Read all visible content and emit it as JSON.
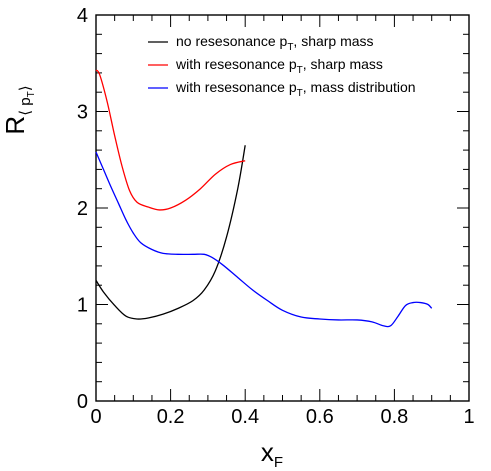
{
  "chart_data": {
    "type": "line",
    "xlabel": "x",
    "xlabel_sub": "F",
    "ylabel": "R",
    "ylabel_sub": "⟨ p",
    "ylabel_sub_sub": "T",
    "ylabel_sub_close": "⟩",
    "xlim": [
      0,
      1
    ],
    "ylim": [
      0,
      4
    ],
    "xticks": [
      "0",
      "0.2",
      "0.4",
      "0.6",
      "0.8",
      "1"
    ],
    "yticks": [
      "0",
      "1",
      "2",
      "3",
      "4"
    ],
    "grid": false,
    "legend_position": "top-right",
    "series": [
      {
        "name_main": "no resesonance p",
        "name_sub": "T",
        "name_tail": ", sharp mass",
        "color": "#000000",
        "x": [
          0.0,
          0.02,
          0.05,
          0.08,
          0.11,
          0.14,
          0.18,
          0.22,
          0.26,
          0.29,
          0.32,
          0.35,
          0.38,
          0.4
        ],
        "y": [
          1.25,
          1.13,
          0.99,
          0.88,
          0.85,
          0.86,
          0.9,
          0.96,
          1.04,
          1.15,
          1.35,
          1.7,
          2.2,
          2.65
        ]
      },
      {
        "name_main": "with resesonance p",
        "name_sub": "T",
        "name_tail": ", sharp mass",
        "color": "#ff0000",
        "x": [
          0.0,
          0.01,
          0.03,
          0.05,
          0.07,
          0.09,
          0.11,
          0.14,
          0.17,
          0.2,
          0.24,
          0.28,
          0.32,
          0.36,
          0.4
        ],
        "y": [
          3.43,
          3.38,
          3.1,
          2.75,
          2.43,
          2.18,
          2.06,
          2.01,
          1.98,
          2.0,
          2.08,
          2.2,
          2.35,
          2.45,
          2.49
        ]
      },
      {
        "name_main": "with resesonance p",
        "name_sub": "T",
        "name_tail": ", mass distribution",
        "color": "#0000ff",
        "x": [
          0.0,
          0.02,
          0.04,
          0.06,
          0.08,
          0.1,
          0.12,
          0.15,
          0.18,
          0.22,
          0.26,
          0.29,
          0.31,
          0.34,
          0.38,
          0.42,
          0.46,
          0.5,
          0.55,
          0.6,
          0.65,
          0.7,
          0.74,
          0.77,
          0.79,
          0.81,
          0.83,
          0.85,
          0.87,
          0.89,
          0.9
        ],
        "y": [
          2.58,
          2.4,
          2.22,
          2.05,
          1.88,
          1.74,
          1.64,
          1.57,
          1.53,
          1.52,
          1.52,
          1.52,
          1.49,
          1.41,
          1.28,
          1.15,
          1.04,
          0.94,
          0.87,
          0.85,
          0.84,
          0.84,
          0.82,
          0.78,
          0.78,
          0.88,
          0.99,
          1.02,
          1.02,
          1.0,
          0.96
        ]
      }
    ]
  }
}
